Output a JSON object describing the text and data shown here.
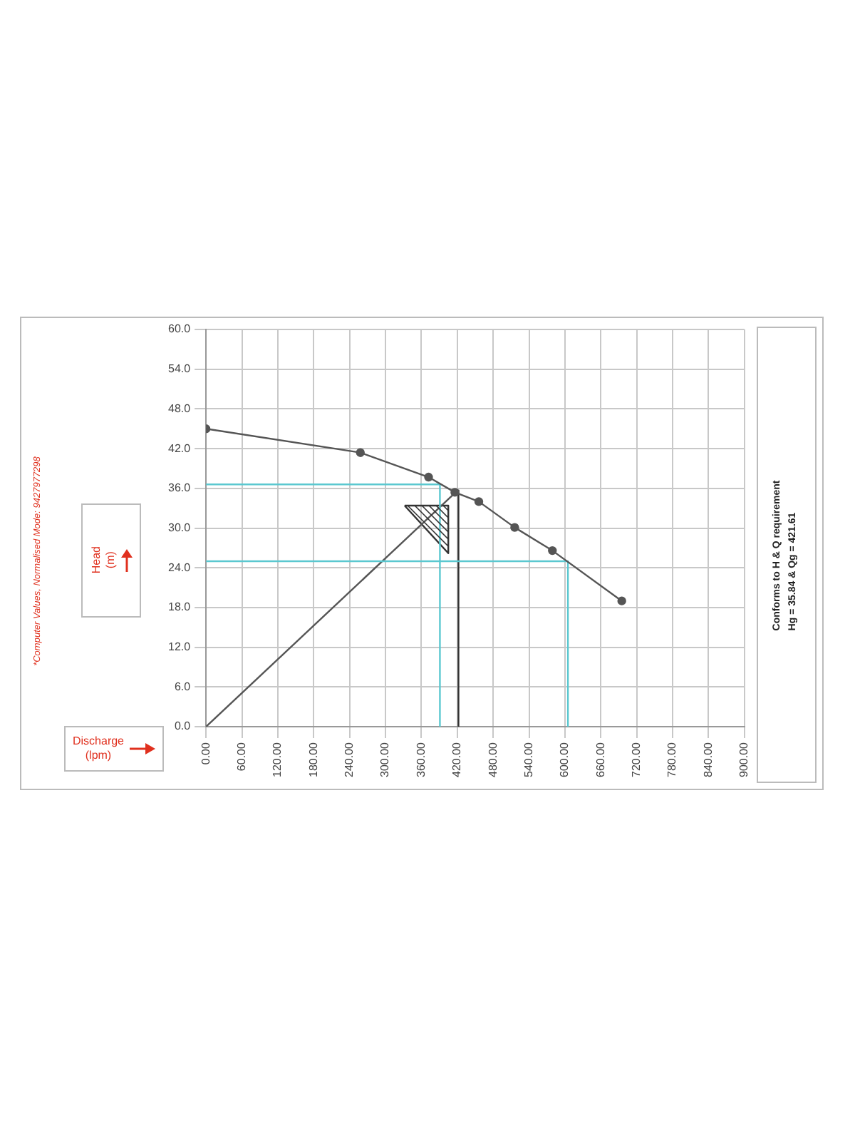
{
  "chart_data": {
    "type": "line",
    "xlabel": "Discharge\n(lpm)",
    "ylabel": "Head\n(m)",
    "xlim": [
      0,
      900
    ],
    "ylim": [
      0,
      60
    ],
    "xticks": [
      {
        "value": 0,
        "label": "0.00"
      },
      {
        "value": 60,
        "label": "60.00"
      },
      {
        "value": 120,
        "label": "120.00"
      },
      {
        "value": 180,
        "label": "180.00"
      },
      {
        "value": 240,
        "label": "240.00"
      },
      {
        "value": 300,
        "label": "300.00"
      },
      {
        "value": 360,
        "label": "360.00"
      },
      {
        "value": 420,
        "label": "420.00"
      },
      {
        "value": 480,
        "label": "480.00"
      },
      {
        "value": 540,
        "label": "540.00"
      },
      {
        "value": 600,
        "label": "600.00"
      },
      {
        "value": 660,
        "label": "660.00"
      },
      {
        "value": 720,
        "label": "720.00"
      },
      {
        "value": 780,
        "label": "780.00"
      },
      {
        "value": 840,
        "label": "840.00"
      },
      {
        "value": 900,
        "label": "900.00"
      }
    ],
    "yticks": [
      {
        "value": 0,
        "label": "0.0"
      },
      {
        "value": 6,
        "label": "6.0"
      },
      {
        "value": 12,
        "label": "12.0"
      },
      {
        "value": 18,
        "label": "18.0"
      },
      {
        "value": 24,
        "label": "24.0"
      },
      {
        "value": 30,
        "label": "30.0"
      },
      {
        "value": 36,
        "label": "36.0"
      },
      {
        "value": 42,
        "label": "42.0"
      },
      {
        "value": 48,
        "label": "48.0"
      },
      {
        "value": 54,
        "label": "54.0"
      },
      {
        "value": 60,
        "label": "60.0"
      }
    ],
    "grid": true,
    "marker": "circle",
    "series": [
      {
        "color": "#555555",
        "x": [
          0,
          258,
          372,
          416,
          456,
          516,
          579,
          695
        ],
        "values": [
          45,
          41.4,
          37.7,
          35.4,
          34,
          30.1,
          26.6,
          19
        ]
      },
      {
        "color": "#5bc8d0",
        "marker": "none",
        "x": [
          0,
          391,
          391
        ],
        "values": [
          36.6,
          36.6,
          0
        ]
      },
      {
        "color": "#5bc8d0",
        "marker": "none",
        "x": [
          0,
          605,
          605
        ],
        "values": [
          25,
          25,
          0
        ]
      },
      {
        "color": "#333333",
        "marker": "none",
        "x": [
          422,
          422
        ],
        "values": [
          0,
          35.8
        ]
      },
      {
        "color": "#555555",
        "marker": "none",
        "x": [
          0,
          422
        ],
        "values": [
          0,
          35.8
        ]
      },
      {
        "color": "#333333",
        "marker": "none",
        "x": [
          332,
          405,
          405
        ],
        "values": [
          33.4,
          33.4,
          26.2
        ]
      },
      {
        "color": "#333333",
        "marker": "none",
        "x": [
          332,
          405
        ],
        "values": [
          33.4,
          26.2
        ]
      }
    ],
    "annotations": [
      "*Computer Values, Normalised Mode: 9427977298",
      "Conforms to H & Q requirement",
      "Hg = 35.84 & Qg = 421.61"
    ]
  }
}
